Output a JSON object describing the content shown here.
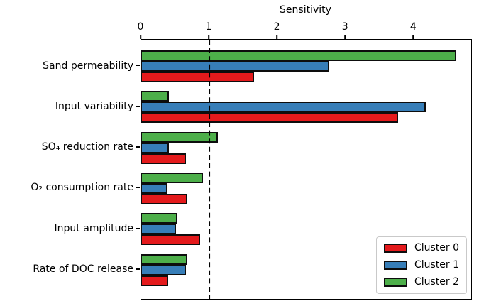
{
  "figure": {
    "background_color": "#ffffff",
    "spine_color": "#000000"
  },
  "axis": {
    "title": "Sensitivity",
    "tick_labels": [
      "0",
      "1",
      "2",
      "3",
      "4"
    ]
  },
  "reference_line": {
    "x": 1,
    "style": "dashed",
    "color": "#000000"
  },
  "legend": {
    "position": "lower right",
    "entries": [
      {
        "label": "Cluster 0",
        "color": "#e41a1c"
      },
      {
        "label": "Cluster 1",
        "color": "#377eb8"
      },
      {
        "label": "Cluster 2",
        "color": "#4daf4a"
      }
    ]
  },
  "chart_data": {
    "type": "bar",
    "orientation": "horizontal",
    "title": "Sensitivity",
    "xlabel": "Sensitivity",
    "ylabel": "",
    "xlim": [
      0,
      4.84
    ],
    "xticks": [
      0,
      1,
      2,
      3,
      4
    ],
    "grid": false,
    "reference_line_x": 1,
    "bar_edge_color": "#000000",
    "categories": [
      "Sand permeability",
      "Input variability",
      "SO₄ reduction rate",
      "O₂ consumption rate",
      "Input amplitude",
      "Rate of DOC release"
    ],
    "series": [
      {
        "name": "Cluster 0",
        "color": "#e41a1c",
        "values": [
          1.66,
          3.77,
          0.66,
          0.68,
          0.86,
          0.4
        ]
      },
      {
        "name": "Cluster 1",
        "color": "#377eb8",
        "values": [
          2.76,
          4.17,
          0.41,
          0.39,
          0.51,
          0.66
        ]
      },
      {
        "name": "Cluster 2",
        "color": "#4daf4a",
        "values": [
          4.62,
          0.41,
          1.12,
          0.91,
          0.53,
          0.68
        ]
      }
    ],
    "group_order_top_to_bottom": [
      "Cluster 2",
      "Cluster 1",
      "Cluster 0"
    ],
    "legend_position": "lower right"
  }
}
